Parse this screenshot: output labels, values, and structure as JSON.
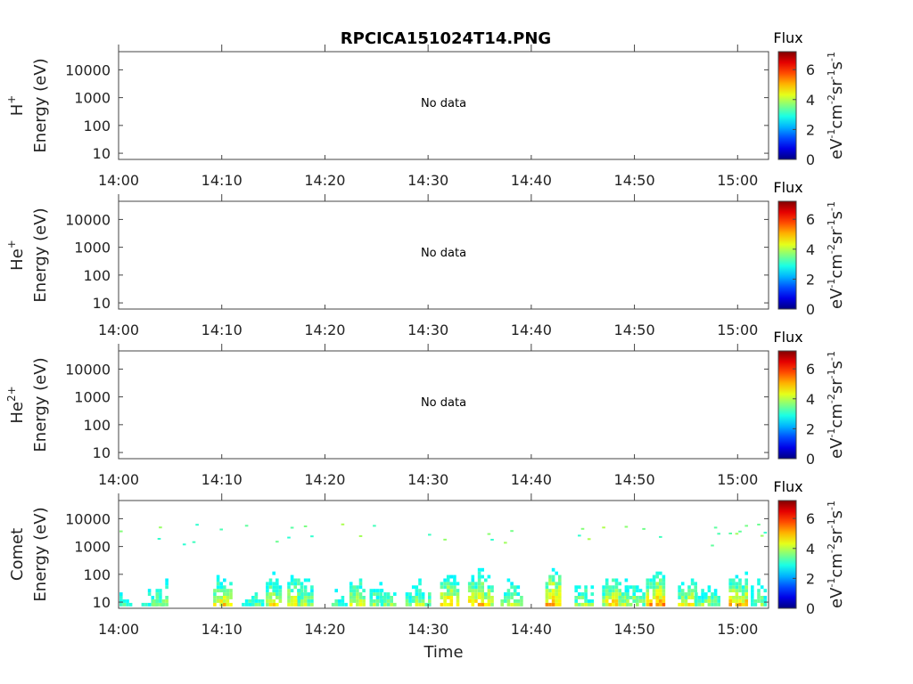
{
  "title": "RPCICA151024T14.PNG",
  "chart_data": [
    {
      "type": "heatmap",
      "species_label": "H+",
      "ylabel": "Energy (eV)",
      "yscale": "log",
      "yticks": [
        "10",
        "100",
        "1000",
        "10000"
      ],
      "xticks": [
        "14:00",
        "14:10",
        "14:20",
        "14:30",
        "14:40",
        "14:50",
        "15:00"
      ],
      "xlim": [
        "14:00",
        "15:03"
      ],
      "ylim": [
        6,
        45000
      ],
      "message": "No data",
      "colorbar": {
        "title": "Flux",
        "label": "eV-1cm-2sr-1s-1",
        "ticks": [
          "0",
          "2",
          "4",
          "6"
        ],
        "range": [
          0,
          7.2
        ]
      }
    },
    {
      "type": "heatmap",
      "species_label": "He+",
      "ylabel": "Energy (eV)",
      "yscale": "log",
      "yticks": [
        "10",
        "100",
        "1000",
        "10000"
      ],
      "xticks": [
        "14:00",
        "14:10",
        "14:20",
        "14:30",
        "14:40",
        "14:50",
        "15:00"
      ],
      "xlim": [
        "14:00",
        "15:03"
      ],
      "ylim": [
        6,
        45000
      ],
      "message": "No data",
      "colorbar": {
        "title": "Flux",
        "label": "eV-1cm-2sr-1s-1",
        "ticks": [
          "0",
          "2",
          "4",
          "6"
        ],
        "range": [
          0,
          7.2
        ]
      }
    },
    {
      "type": "heatmap",
      "species_label": "He2+",
      "ylabel": "Energy (eV)",
      "yscale": "log",
      "yticks": [
        "10",
        "100",
        "1000",
        "10000"
      ],
      "xticks": [
        "14:00",
        "14:10",
        "14:20",
        "14:30",
        "14:40",
        "14:50",
        "15:00"
      ],
      "xlim": [
        "14:00",
        "15:03"
      ],
      "ylim": [
        6,
        45000
      ],
      "message": "No data",
      "colorbar": {
        "title": "Flux",
        "label": "eV-1cm-2sr-1s-1",
        "ticks": [
          "0",
          "2",
          "4",
          "6"
        ],
        "range": [
          0,
          7.2
        ]
      }
    },
    {
      "type": "heatmap",
      "species_label": "Comet",
      "ylabel": "Energy (eV)",
      "yscale": "log",
      "yticks": [
        "10",
        "100",
        "1000",
        "10000"
      ],
      "xticks": [
        "14:00",
        "14:10",
        "14:20",
        "14:30",
        "14:40",
        "14:50",
        "15:00"
      ],
      "xlabel": "Time",
      "xlim": [
        "14:00",
        "15:03"
      ],
      "ylim": [
        6,
        45000
      ],
      "message": "",
      "colorbar": {
        "title": "Flux",
        "label": "eV-1cm-2sr-1s-1",
        "ticks": [
          "0",
          "2",
          "4",
          "6"
        ],
        "range": [
          0,
          7.2
        ]
      },
      "bursts": [
        {
          "t": "14:00",
          "top": 200,
          "peak": 4.6
        },
        {
          "t": "14:03",
          "top": 500,
          "peak": 4.2
        },
        {
          "t": "14:04",
          "top": 300,
          "peak": 5.2
        },
        {
          "t": "14:07",
          "top": 40,
          "peak": 3.8
        },
        {
          "t": "14:10",
          "top": 250,
          "peak": 6.4
        },
        {
          "t": "14:13",
          "top": 60,
          "peak": 5.6
        },
        {
          "t": "14:15",
          "top": 400,
          "peak": 5.8
        },
        {
          "t": "14:17",
          "top": 300,
          "peak": 6.2
        },
        {
          "t": "14:18",
          "top": 500,
          "peak": 5.2
        },
        {
          "t": "14:21",
          "top": 80,
          "peak": 4.8
        },
        {
          "t": "14:23",
          "top": 300,
          "peak": 5.8
        },
        {
          "t": "14:25",
          "top": 200,
          "peak": 5.4
        },
        {
          "t": "14:26",
          "top": 120,
          "peak": 5.3
        },
        {
          "t": "14:29",
          "top": 300,
          "peak": 5.4
        },
        {
          "t": "14:32",
          "top": 350,
          "peak": 6.4
        },
        {
          "t": "14:35",
          "top": 500,
          "peak": 6.3
        },
        {
          "t": "14:38",
          "top": 250,
          "peak": 5.6
        },
        {
          "t": "14:42",
          "top": 500,
          "peak": 6.8
        },
        {
          "t": "14:45",
          "top": 200,
          "peak": 5.4
        },
        {
          "t": "14:48",
          "top": 300,
          "peak": 6.2
        },
        {
          "t": "14:50",
          "top": 200,
          "peak": 5.6
        },
        {
          "t": "14:52",
          "top": 500,
          "peak": 6.9
        },
        {
          "t": "14:55",
          "top": 300,
          "peak": 6.0
        },
        {
          "t": "14:57",
          "top": 200,
          "peak": 5.4
        },
        {
          "t": "15:00",
          "top": 350,
          "peak": 6.6
        },
        {
          "t": "15:02",
          "top": 600,
          "peak": 4.9
        }
      ]
    }
  ]
}
